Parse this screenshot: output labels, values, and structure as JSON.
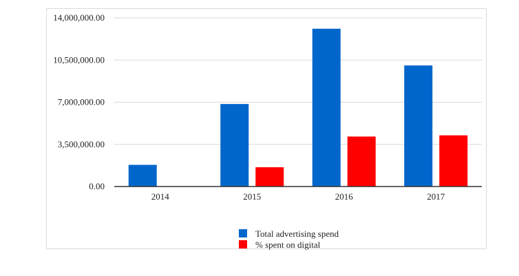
{
  "chart_data": {
    "type": "bar",
    "categories": [
      "2014",
      "2015",
      "2016",
      "2017"
    ],
    "series": [
      {
        "name": "Total advertising spend",
        "color": "#0066cc",
        "values": [
          1800000,
          6850000,
          13100000,
          10050000
        ]
      },
      {
        "name": "% spent on digital",
        "color": "#ff0000",
        "values": [
          0,
          1600000,
          4150000,
          4250000
        ]
      }
    ],
    "ylim": [
      0,
      14000000
    ],
    "yticks": [
      0,
      3500000,
      7000000,
      10500000,
      14000000
    ],
    "ytick_labels": [
      "0.00",
      "3,500,000.00",
      "7,000,000.00",
      "10,500,000.00",
      "14,000,000.00"
    ],
    "grid": true,
    "legend_position": "bottom"
  }
}
